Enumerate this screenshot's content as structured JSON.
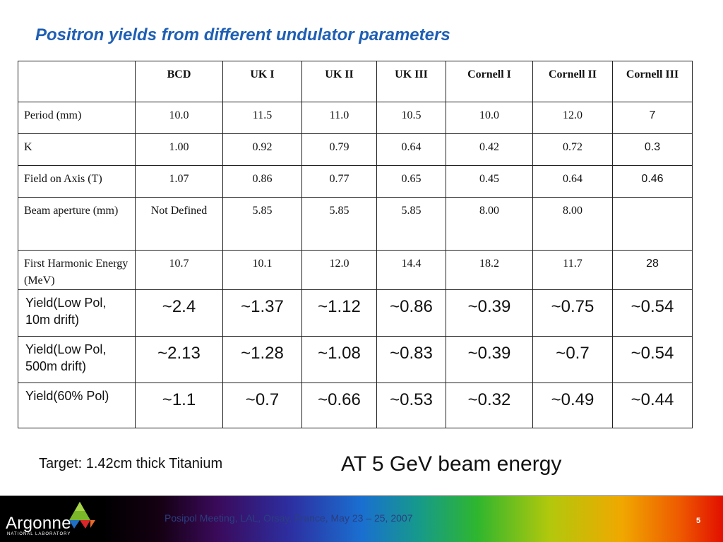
{
  "title": "Positron yields from different undulator parameters",
  "table": {
    "columns": [
      "BCD",
      "UK I",
      "UK II",
      "UK III",
      "Cornell I",
      "Cornell II",
      "Cornell III"
    ],
    "rows": [
      {
        "label": "Period (mm)",
        "values": [
          "10.0",
          "11.5",
          "11.0",
          "10.5",
          "10.0",
          "12.0",
          "7"
        ]
      },
      {
        "label": "K",
        "values": [
          "1.00",
          "0.92",
          "0.79",
          "0.64",
          "0.42",
          "0.72",
          "0.3"
        ]
      },
      {
        "label": "Field on Axis (T)",
        "values": [
          "1.07",
          "0.86",
          "0.77",
          "0.65",
          "0.45",
          "0.64",
          "0.46"
        ]
      },
      {
        "label": "Beam aperture (mm)",
        "values": [
          "Not Defined",
          "5.85",
          "5.85",
          "5.85",
          "8.00",
          "8.00",
          ""
        ]
      },
      {
        "label": "First Harmonic Energy (MeV)",
        "values": [
          "10.7",
          "10.1",
          "12.0",
          "14.4",
          "18.2",
          "11.7",
          "28"
        ]
      },
      {
        "label": "Yield(Low Pol, 10m drift)",
        "values": [
          "~2.4",
          "~1.37",
          "~1.12",
          "~0.86",
          "~0.39",
          "~0.75",
          "~0.54"
        ]
      },
      {
        "label": "Yield(Low Pol, 500m drift)",
        "values": [
          "~2.13",
          "~1.28",
          "~1.08",
          "~0.83",
          "~0.39",
          "~0.7",
          "~0.54"
        ]
      },
      {
        "label": "Yield(60% Pol)",
        "values": [
          "~1.1",
          "~0.7",
          "~0.66",
          "~0.53",
          "~0.32",
          "~0.49",
          "~0.44"
        ]
      }
    ]
  },
  "target_note": "Target: 1.42cm thick Titanium",
  "beam_energy_note": "AT 5 GeV beam energy",
  "footer": {
    "logo_text": "Argonne",
    "logo_subtext": "NATIONAL LABORATORY",
    "meeting": "Posipol Meeting, LAL, Orsay, France, May 23 – 25, 2007",
    "page_number": "5"
  },
  "colors": {
    "title": "#1f5fb4",
    "meeting_text": "#2a3e80",
    "logo_green": "#7ab829",
    "logo_blue": "#1f6fc5",
    "logo_red": "#d8262a"
  }
}
